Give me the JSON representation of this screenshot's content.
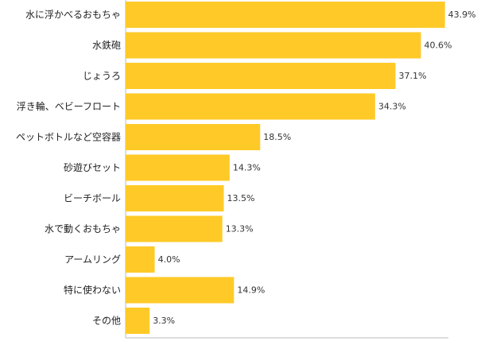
{
  "chart_data": {
    "type": "bar",
    "orientation": "horizontal",
    "categories": [
      "水に浮かべるおもちゃ",
      "水鉄砲",
      "じょうろ",
      "浮き輪、ベビーフロート",
      "ペットボトルなど空容器",
      "砂遊びセット",
      "ビーチボール",
      "水で動くおもちゃ",
      "アームリング",
      "特に使わない",
      "その他"
    ],
    "values": [
      43.9,
      40.6,
      37.1,
      34.3,
      18.5,
      14.3,
      13.5,
      13.3,
      4.0,
      14.9,
      3.3
    ],
    "value_labels": [
      "43.9%",
      "40.6%",
      "37.1%",
      "34.3%",
      "18.5%",
      "14.3%",
      "13.5%",
      "13.3%",
      "4.0%",
      "14.9%",
      "3.3%"
    ],
    "title": "",
    "xlabel": "",
    "ylabel": "",
    "xlim": [
      0,
      50
    ],
    "grid": false,
    "legend": "none",
    "colors": {
      "bar": "#FFCA28",
      "axis": "#bbbbbb",
      "text": "#222222"
    }
  }
}
